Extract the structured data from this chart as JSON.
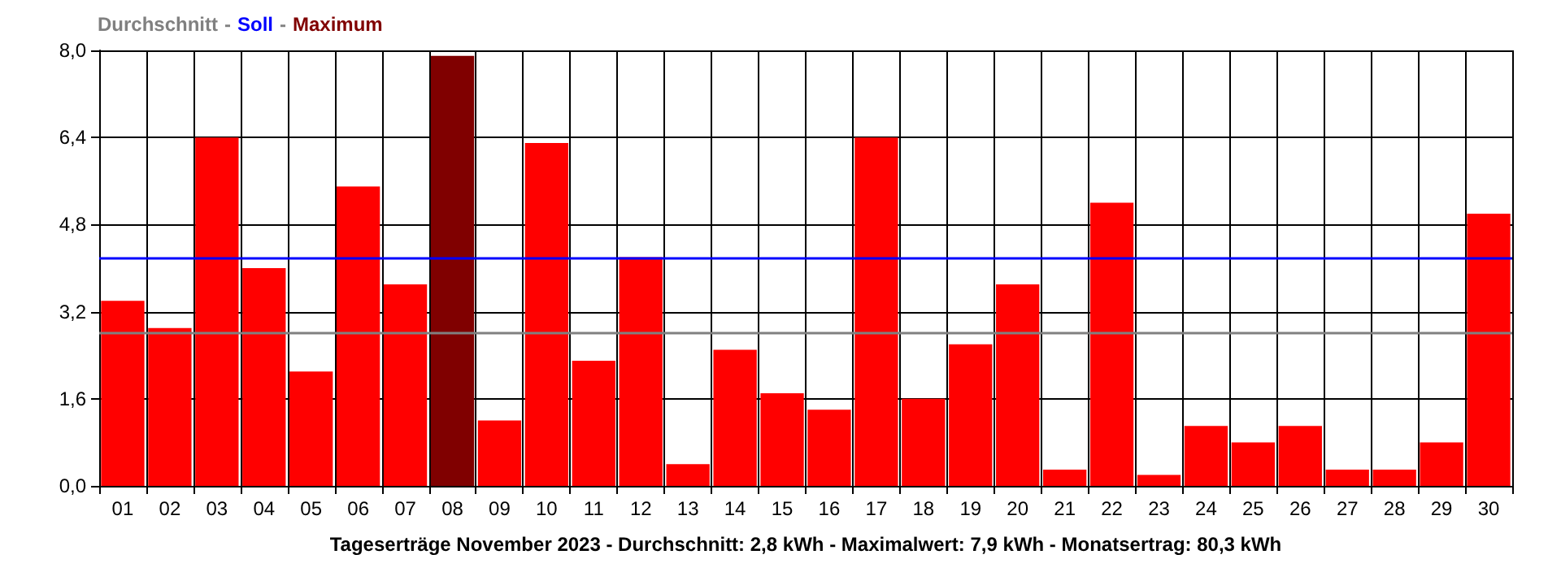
{
  "chart_data": {
    "type": "bar",
    "xlabel": "Tageserträge November 2023 - Durchschnitt: 2,8 kWh - Maximalwert: 7,9 kWh - Monatsertrag: 80,3 kWh",
    "categories": [
      "01",
      "02",
      "03",
      "04",
      "05",
      "06",
      "07",
      "08",
      "09",
      "10",
      "11",
      "12",
      "13",
      "14",
      "15",
      "16",
      "17",
      "18",
      "19",
      "20",
      "21",
      "22",
      "23",
      "24",
      "25",
      "26",
      "27",
      "28",
      "29",
      "30"
    ],
    "stacked": true,
    "series": [
      {
        "color": "#ff0000",
        "values": [
          3.4,
          2.9,
          6.4,
          4.0,
          2.1,
          5.5,
          3.7,
          null,
          1.2,
          6.3,
          2.3,
          4.2,
          0.4,
          2.5,
          1.7,
          1.4,
          6.4,
          1.6,
          2.6,
          3.7,
          0.3,
          5.2,
          0.2,
          1.1,
          0.8,
          1.1,
          0.3,
          0.3,
          0.8,
          5.0
        ]
      },
      {
        "name": "Maximum",
        "color": "#800000",
        "values": [
          null,
          null,
          null,
          null,
          null,
          null,
          null,
          7.9,
          null,
          null,
          null,
          null,
          null,
          null,
          null,
          null,
          null,
          null,
          null,
          null,
          null,
          null,
          null,
          null,
          null,
          null,
          null,
          null,
          null,
          null
        ]
      }
    ],
    "ylim": [
      0,
      8
    ],
    "yticks": [
      {
        "value": 0,
        "label": "0,0"
      },
      {
        "value": 1.6,
        "label": "1,6"
      },
      {
        "value": 3.2,
        "label": "3,2"
      },
      {
        "value": 4.8,
        "label": "4,8"
      },
      {
        "value": 6.4,
        "label": "6,4"
      },
      {
        "value": 8,
        "label": "8,0"
      }
    ],
    "ref_lines": [
      {
        "axis": "y",
        "value": 2.8,
        "label": "Durchschnitt",
        "color": "#808080"
      },
      {
        "axis": "y",
        "value": 4.2,
        "label": "Soll",
        "color": "#0000ff"
      }
    ],
    "annotations": [
      "-",
      "-"
    ],
    "grid": true,
    "legend": "top left"
  }
}
